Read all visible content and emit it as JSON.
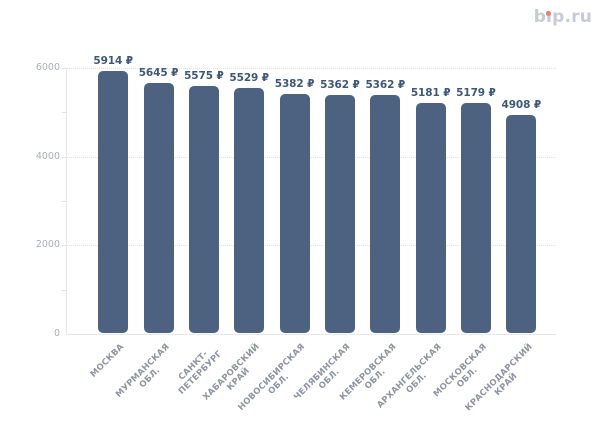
{
  "header": {
    "logo_text": "bip.ru",
    "logo_color": "#c7cbd8",
    "logo_dot_color": "#f0816d"
  },
  "chart_data": {
    "type": "bar",
    "title": "",
    "xlabel": "",
    "ylabel": "",
    "currency": "₽",
    "categories": [
      "МОСКВА",
      "МУРМАНСКАЯ\nОБЛ.",
      "САНКТ-\nПЕТЕРБУРГ",
      "ХАБАРОВСКИЙ\nКРАЙ",
      "НОВОСИБИРСКАЯ\nОБЛ.",
      "ЧЕЛЯБИНСКАЯ\nОБЛ.",
      "КЕМЕРОВСКАЯ\nОБЛ.",
      "АРХАНГЕЛЬСКАЯ\nОБЛ.",
      "МОСКОВСКАЯ\nОБЛ.",
      "КРАСНОДАРСКИЙ\nКРАЙ"
    ],
    "values": [
      5914,
      5645,
      5575,
      5529,
      5382,
      5362,
      5362,
      5181,
      5179,
      4908
    ],
    "value_labels": [
      "5914 ₽",
      "5645 ₽",
      "5575 ₽",
      "5529 ₽",
      "5382 ₽",
      "5362 ₽",
      "5362 ₽",
      "5181 ₽",
      "5179 ₽",
      "4908 ₽"
    ],
    "ylim": [
      0,
      6000
    ],
    "y_major_ticks": [
      {
        "value": 0,
        "label": "0"
      },
      {
        "value": 2000,
        "label": "2000"
      },
      {
        "value": 4000,
        "label": "4000"
      },
      {
        "value": 6000,
        "label": "6000"
      }
    ],
    "y_tick_mark_values": [
      1000,
      2000,
      3000,
      4000,
      5000,
      6000
    ],
    "grid": "horizontal dotted gridlines at 2000 / 4000 / 6000, solid light baseline and y-axis line",
    "legend": null,
    "colors": {
      "bar": "#4d6180",
      "value_label": "#3e5878",
      "y_axis_label": "#a6adbb",
      "category_label": "#8d94a2",
      "gridline": "#dfe2e8",
      "axis_line": "#e4e7ec"
    }
  }
}
